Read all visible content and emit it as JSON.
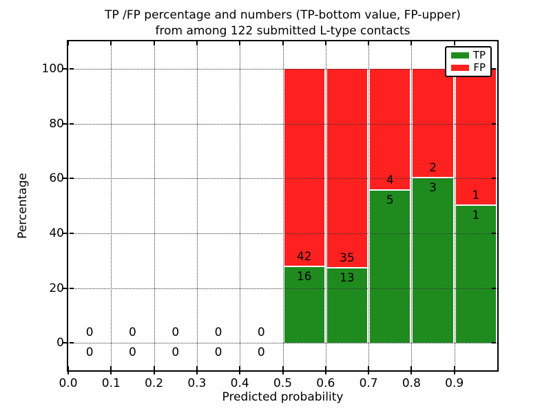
{
  "chart_data": {
    "type": "bar",
    "stacked": true,
    "normalized_to_percent": true,
    "title": {
      "line1": "TP /FP percentage and numbers (TP-bottom value, FP-upper)",
      "line2": "from among 122 submitted L-type contacts"
    },
    "xlabel": "Predicted probability",
    "ylabel": "Percentage",
    "xlim": [
      0.0,
      1.0
    ],
    "ylim": [
      -10,
      110
    ],
    "xticks": [
      0.0,
      0.1,
      0.2,
      0.3,
      0.4,
      0.5,
      0.6,
      0.7,
      0.8,
      0.9
    ],
    "xtick_labels": [
      "0.0",
      "0.1",
      "0.2",
      "0.3",
      "0.4",
      "0.5",
      "0.6",
      "0.7",
      "0.8",
      "0.9"
    ],
    "yticks": [
      0,
      20,
      40,
      60,
      80,
      100
    ],
    "ytick_labels": [
      "0",
      "20",
      "40",
      "60",
      "80",
      "100"
    ],
    "grid": "dotted",
    "bin_width": 0.1,
    "total_contacts": 122,
    "colors": {
      "tp": "#1f8b1f",
      "fp": "#ff2020"
    },
    "legend": {
      "position": "upper right",
      "entries": [
        {
          "label": "TP",
          "color_key": "tp"
        },
        {
          "label": "FP",
          "color_key": "fp"
        }
      ]
    },
    "series": [
      {
        "name": "TP",
        "counts": [
          0,
          0,
          0,
          0,
          0,
          16,
          13,
          5,
          3,
          1
        ]
      },
      {
        "name": "FP",
        "counts": [
          0,
          0,
          0,
          0,
          0,
          42,
          35,
          4,
          2,
          1
        ]
      }
    ],
    "bins": [
      {
        "x_start": 0.0,
        "x_end": 0.1,
        "tp": 0,
        "fp": 0,
        "tp_pct": null,
        "fp_pct": null
      },
      {
        "x_start": 0.1,
        "x_end": 0.2,
        "tp": 0,
        "fp": 0,
        "tp_pct": null,
        "fp_pct": null
      },
      {
        "x_start": 0.2,
        "x_end": 0.3,
        "tp": 0,
        "fp": 0,
        "tp_pct": null,
        "fp_pct": null
      },
      {
        "x_start": 0.3,
        "x_end": 0.4,
        "tp": 0,
        "fp": 0,
        "tp_pct": null,
        "fp_pct": null
      },
      {
        "x_start": 0.4,
        "x_end": 0.5,
        "tp": 0,
        "fp": 0,
        "tp_pct": null,
        "fp_pct": null
      },
      {
        "x_start": 0.5,
        "x_end": 0.6,
        "tp": 16,
        "fp": 42,
        "tp_pct": 27.6,
        "fp_pct": 72.4
      },
      {
        "x_start": 0.6,
        "x_end": 0.7,
        "tp": 13,
        "fp": 35,
        "tp_pct": 27.1,
        "fp_pct": 72.9
      },
      {
        "x_start": 0.7,
        "x_end": 0.8,
        "tp": 5,
        "fp": 4,
        "tp_pct": 55.6,
        "fp_pct": 44.4
      },
      {
        "x_start": 0.8,
        "x_end": 0.9,
        "tp": 3,
        "fp": 2,
        "tp_pct": 60.0,
        "fp_pct": 40.0
      },
      {
        "x_start": 0.9,
        "x_end": 1.0,
        "tp": 1,
        "fp": 1,
        "tp_pct": 50.0,
        "fp_pct": 50.0
      }
    ]
  }
}
